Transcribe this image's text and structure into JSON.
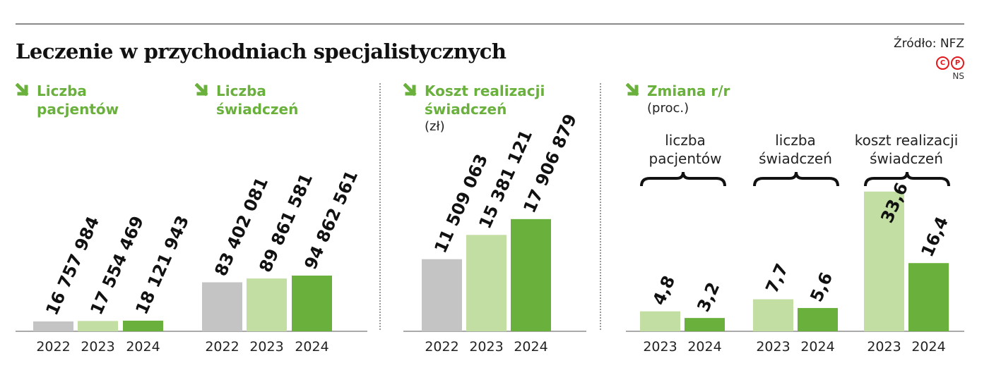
{
  "title": "Leczenie w przychodniach specjalistycznych",
  "source": "Źródło: NFZ",
  "badges": {
    "c": "C",
    "p": "P"
  },
  "initials": "NS",
  "colors": {
    "accent": "#6ab03c",
    "y2022": "#c4c4c4",
    "y2023": "#c3dea3",
    "y2024": "#6ab03c",
    "brand_red": "#e1191c"
  },
  "headings": {
    "patients": {
      "line1": "Liczba",
      "line2": "pacjentów"
    },
    "services": {
      "line1": "Liczba",
      "line2": "świadczeń"
    },
    "cost": {
      "line1": "Koszt realizacji",
      "line2": "świadczeń",
      "unit": "(zł)"
    },
    "change": {
      "line1": "Zmiana r/r",
      "unit": "(proc.)"
    }
  },
  "change_groups": [
    {
      "line1": "liczba",
      "line2": "pacjentów"
    },
    {
      "line1": "liczba",
      "line2": "świadczeń"
    },
    {
      "line1": "koszt realizacji",
      "line2": "świadczeń"
    }
  ],
  "chart_data": [
    {
      "type": "bar",
      "title": "Liczba pacjentów",
      "categories": [
        "2022",
        "2023",
        "2024"
      ],
      "values": [
        16757984,
        17554469,
        18121943
      ],
      "labels": [
        "16 757 984",
        "17 554 469",
        "18 121 943"
      ]
    },
    {
      "type": "bar",
      "title": "Liczba świadczeń",
      "categories": [
        "2022",
        "2023",
        "2024"
      ],
      "values": [
        83402081,
        89861581,
        94862561
      ],
      "labels": [
        "83 402 081",
        "89 861 581",
        "94 862 561"
      ]
    },
    {
      "type": "bar",
      "title": "Koszt realizacji świadczeń",
      "unit": "(zł)",
      "categories": [
        "2022",
        "2023",
        "2024"
      ],
      "values": [
        11509063,
        15381121,
        17906879
      ],
      "labels": [
        "11 509 063",
        "15 381 121",
        "17 906 879"
      ]
    },
    {
      "type": "bar",
      "title": "Zmiana r/r",
      "unit": "(proc.)",
      "groups": [
        "liczba pacjentów",
        "liczba świadczeń",
        "koszt realizacji świadczeń"
      ],
      "categories": [
        "2023",
        "2024"
      ],
      "series": [
        {
          "group": "liczba pacjentów",
          "values": [
            4.8,
            3.2
          ],
          "labels": [
            "4,8",
            "3,2"
          ]
        },
        {
          "group": "liczba świadczeń",
          "values": [
            7.7,
            5.6
          ],
          "labels": [
            "7,7",
            "5,6"
          ]
        },
        {
          "group": "koszt realizacji świadczeń",
          "values": [
            33.6,
            16.4
          ],
          "labels": [
            "33,6",
            "16,4"
          ]
        }
      ]
    }
  ]
}
